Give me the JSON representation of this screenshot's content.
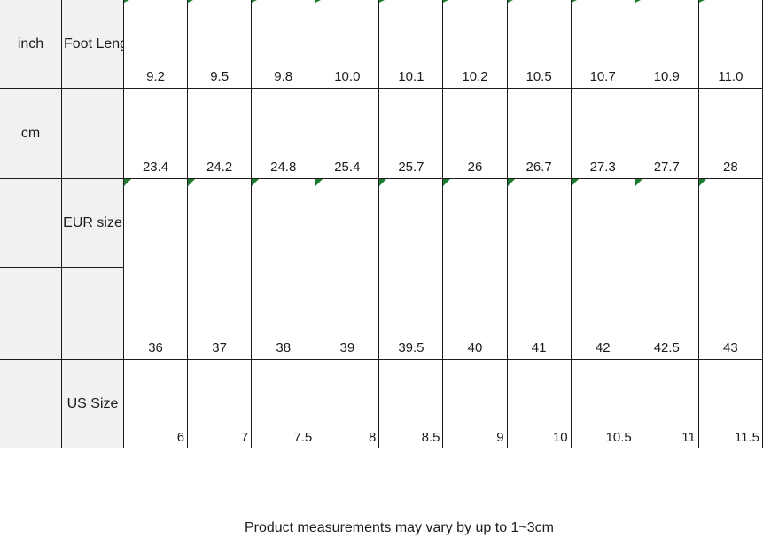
{
  "table": {
    "labels": {
      "inch": "inch",
      "cm": "cm",
      "foot_length": "Foot Length",
      "eur_size": "EUR size",
      "us_size": "US Size"
    },
    "inch_values": [
      "9.2",
      "9.5",
      "9.8",
      "10.0",
      "10.1",
      "10.2",
      "10.5",
      "10.7",
      "10.9",
      "11.0"
    ],
    "cm_values": [
      "23.4",
      "24.2",
      "24.8",
      "25.4",
      "25.7",
      "26",
      "26.7",
      "27.3",
      "27.7",
      "28"
    ],
    "eur_values": [
      "36",
      "37",
      "38",
      "39",
      "39.5",
      "40",
      "41",
      "42",
      "42.5",
      "43"
    ],
    "us_values": [
      "6",
      "7",
      "7.5",
      "8",
      "8.5",
      "9",
      "10",
      "10.5",
      "11",
      "11.5"
    ]
  },
  "caption": "Product measurements may vary by up to 1~3cm",
  "icons": {
    "cell_flag": "spreadsheet-error-flag-triangle"
  },
  "colors": {
    "header_bg": "#f1f1f1",
    "border": "#1a1a1a",
    "flag_green": "#1d7d30",
    "text": "#1c1c1c"
  }
}
